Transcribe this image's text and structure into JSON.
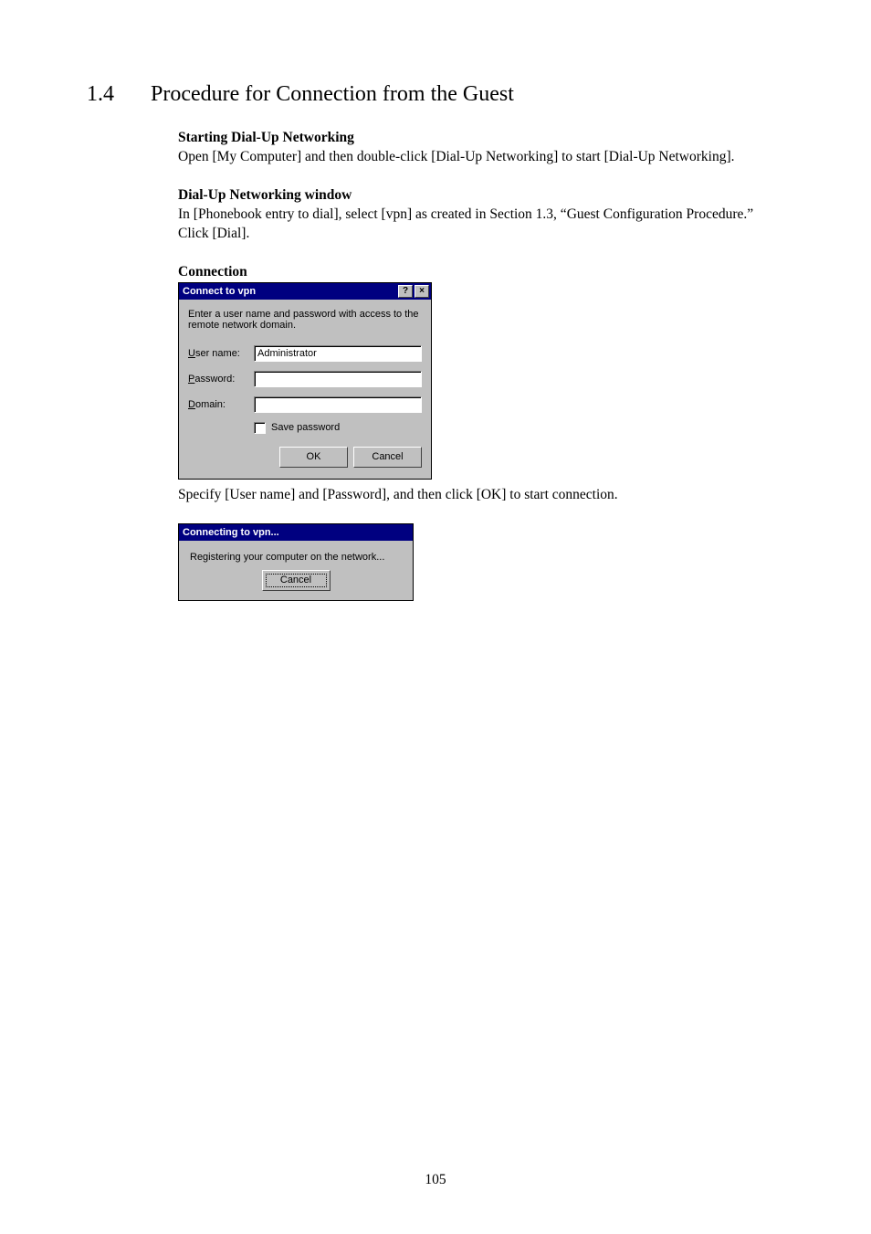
{
  "heading": {
    "number": "1.4",
    "title": "Procedure for Connection from the Guest"
  },
  "section1": {
    "title": "Starting Dial-Up Networking",
    "text": "Open [My Computer] and then double-click [Dial-Up Networking] to start [Dial-Up Networking]."
  },
  "section2": {
    "title": "Dial-Up Networking window",
    "line1": "In [Phonebook entry to dial], select [vpn] as created in Section 1.3, “Guest Configuration Procedure.”",
    "line2": "Click [Dial]."
  },
  "connLabel": "Connection",
  "dialog1": {
    "title": "Connect to vpn",
    "help": "?",
    "close": "×",
    "instr": "Enter a user name and password with access to the remote network domain.",
    "user_label_u": "U",
    "user_label_rest": "ser name:",
    "user_value": "Administrator",
    "pass_label_u": "P",
    "pass_label_rest": "assword:",
    "pass_value": "",
    "dom_label_u": "D",
    "dom_label_rest": "omain:",
    "dom_value": "",
    "save_u": "S",
    "save_rest": "ave password",
    "ok": "OK",
    "cancel": "Cancel"
  },
  "afterDialog1": "Specify [User name] and [Password], and then click [OK] to start connection.",
  "dialog2": {
    "title": "Connecting to vpn...",
    "msg": "Registering your computer on the network...",
    "cancel": "Cancel"
  },
  "pageNumber": "105"
}
